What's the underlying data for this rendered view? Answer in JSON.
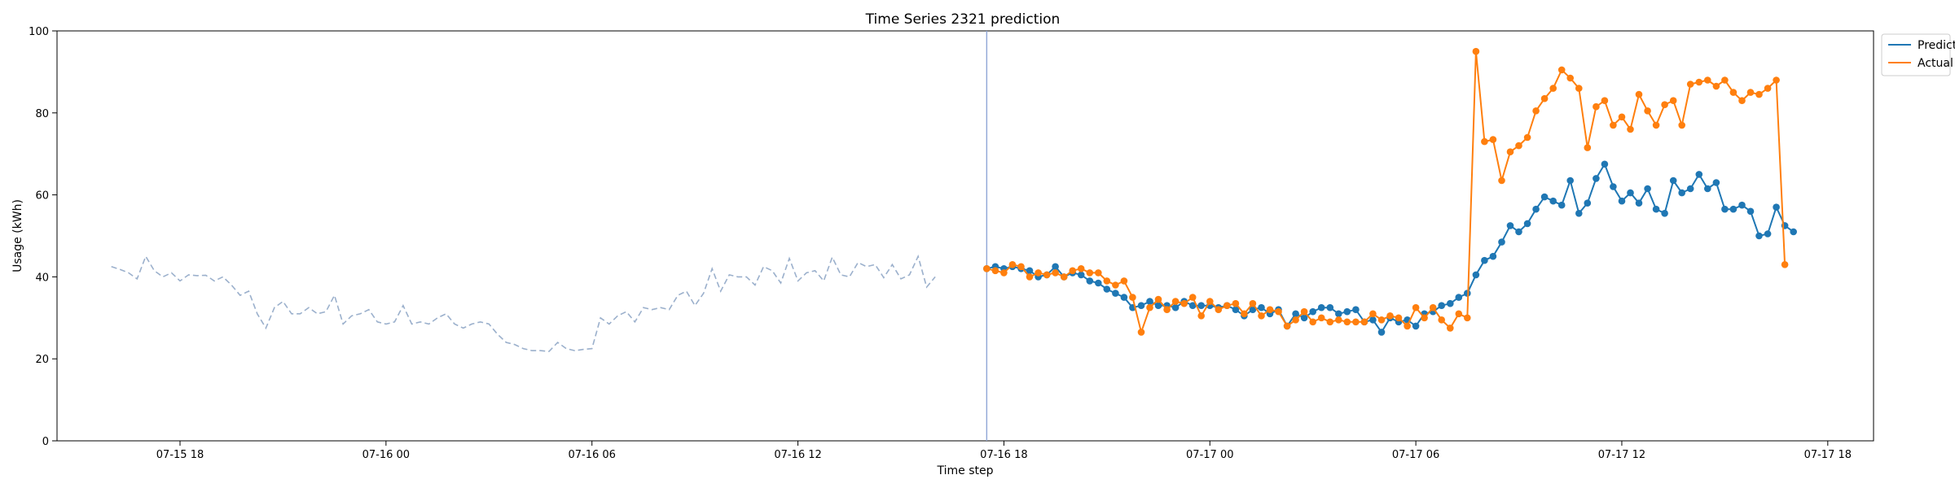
{
  "chart_data": {
    "type": "line",
    "title": "Time Series 2321 prediction",
    "xlabel": "Time step",
    "ylabel": "Usage (kWh)",
    "ylim": [
      0,
      100
    ],
    "yticks": [
      0,
      20,
      40,
      60,
      80,
      100
    ],
    "xlim": [
      "2024-07-15T14:25",
      "2024-07-17T19:20"
    ],
    "xticks": [
      {
        "t": "2024-07-15T18:00",
        "label": "07-15 18"
      },
      {
        "t": "2024-07-16T00:00",
        "label": "07-16 00"
      },
      {
        "t": "2024-07-16T06:00",
        "label": "07-16 06"
      },
      {
        "t": "2024-07-16T12:00",
        "label": "07-16 12"
      },
      {
        "t": "2024-07-16T18:00",
        "label": "07-16 18"
      },
      {
        "t": "2024-07-17T00:00",
        "label": "07-17 00"
      },
      {
        "t": "2024-07-17T06:00",
        "label": "07-17 06"
      },
      {
        "t": "2024-07-17T12:00",
        "label": "07-17 12"
      },
      {
        "t": "2024-07-17T18:00",
        "label": "07-17 18"
      }
    ],
    "prediction_start": "2024-07-16T17:30",
    "interval_minutes": 15,
    "legend": {
      "placement": "top-right outside",
      "entries": [
        "Predict",
        "Actual"
      ]
    },
    "colors": {
      "predict": "#1f77b4",
      "actual": "#ff7f0e",
      "history": "#9bb0cc",
      "divider": "#8fa6d6"
    },
    "history": {
      "start": "2024-07-15T16:00",
      "values": [
        42.5,
        41.8,
        41.0,
        39.5,
        45.0,
        41.5,
        40.0,
        41.0,
        39.0,
        40.5,
        40.3,
        40.4,
        39.0,
        40.0,
        38.0,
        35.5,
        36.5,
        31.0,
        27.5,
        32.5,
        34.0,
        31.0,
        31.0,
        32.5,
        31.0,
        31.5,
        35.5,
        28.5,
        30.5,
        31.0,
        32.0,
        29.0,
        28.5,
        29.0,
        33.0,
        28.5,
        29.0,
        28.5,
        30.0,
        31.0,
        28.5,
        27.5,
        28.5,
        29.0,
        28.5,
        26.0,
        24.0,
        23.5,
        22.5,
        22.0,
        22.0,
        21.8,
        24.0,
        22.5,
        22.0,
        22.3,
        22.5,
        30.0,
        28.5,
        30.5,
        31.5,
        29.0,
        32.5,
        32.0,
        32.5,
        32.0,
        35.5,
        36.5,
        33.0,
        36.0,
        42.0,
        36.5,
        40.5,
        40.0,
        40.0,
        38.0,
        42.5,
        41.5,
        38.5,
        44.5,
        39.0,
        41.0,
        41.5,
        39.0,
        44.8,
        40.5,
        40.0,
        43.5,
        42.5,
        43.0,
        39.8,
        43.0,
        39.5,
        40.5,
        45.0,
        37.5,
        40.0
      ]
    },
    "series": [
      {
        "name": "Predict",
        "values": [
          42.0,
          42.5,
          42.0,
          42.5,
          42.0,
          41.5,
          40.0,
          40.5,
          42.5,
          40.0,
          41.0,
          40.5,
          39.0,
          38.5,
          37.0,
          36.0,
          35.0,
          32.5,
          33.0,
          34.0,
          33.0,
          33.0,
          32.5,
          34.0,
          33.0,
          33.0,
          33.0,
          32.5,
          33.0,
          32.0,
          30.5,
          32.0,
          32.5,
          31.0,
          32.0,
          28.0,
          31.0,
          30.0,
          31.5,
          32.5,
          32.5,
          31.0,
          31.5,
          32.0,
          29.0,
          29.5,
          26.5,
          30.0,
          29.0,
          29.5,
          28.0,
          31.0,
          31.5,
          33.0,
          33.5,
          35.0,
          36.0,
          40.5,
          44.0,
          45.0,
          48.5,
          52.5,
          51.0,
          53.0,
          56.5,
          59.5,
          58.5,
          57.5,
          63.5,
          55.5,
          58.0,
          64.0,
          67.5,
          62.0,
          58.5,
          60.5,
          58.0,
          61.5,
          56.5,
          55.5,
          63.5,
          60.5,
          61.5,
          65.0,
          61.5,
          63.0,
          56.5,
          56.5,
          57.5,
          56.0,
          50.0,
          50.5,
          57.0,
          52.5,
          51.0
        ]
      },
      {
        "name": "Actual",
        "values": [
          42.0,
          41.5,
          41.0,
          43.0,
          42.5,
          40.0,
          41.0,
          40.5,
          41.0,
          40.0,
          41.5,
          42.0,
          41.0,
          41.0,
          39.0,
          38.0,
          39.0,
          35.0,
          26.5,
          32.5,
          34.5,
          32.0,
          34.0,
          33.5,
          35.0,
          30.5,
          34.0,
          32.0,
          33.0,
          33.5,
          31.0,
          33.5,
          30.5,
          32.0,
          31.5,
          28.0,
          29.5,
          31.5,
          29.0,
          30.0,
          29.0,
          29.5,
          29.0,
          29.0,
          29.0,
          31.0,
          29.5,
          30.5,
          30.0,
          28.0,
          32.5,
          30.0,
          32.5,
          29.5,
          27.5,
          31.0,
          30.0,
          95.0,
          73.0,
          73.5,
          63.5,
          70.5,
          72.0,
          74.0,
          80.5,
          83.5,
          86.0,
          90.5,
          88.5,
          86.0,
          71.5,
          81.5,
          83.0,
          77.0,
          79.0,
          76.0,
          84.5,
          80.5,
          77.0,
          82.0,
          83.0,
          77.0,
          87.0,
          87.5,
          88.0,
          86.5,
          88.0,
          85.0,
          83.0,
          85.0,
          84.5,
          86.0,
          88.0,
          43.0
        ]
      }
    ]
  }
}
